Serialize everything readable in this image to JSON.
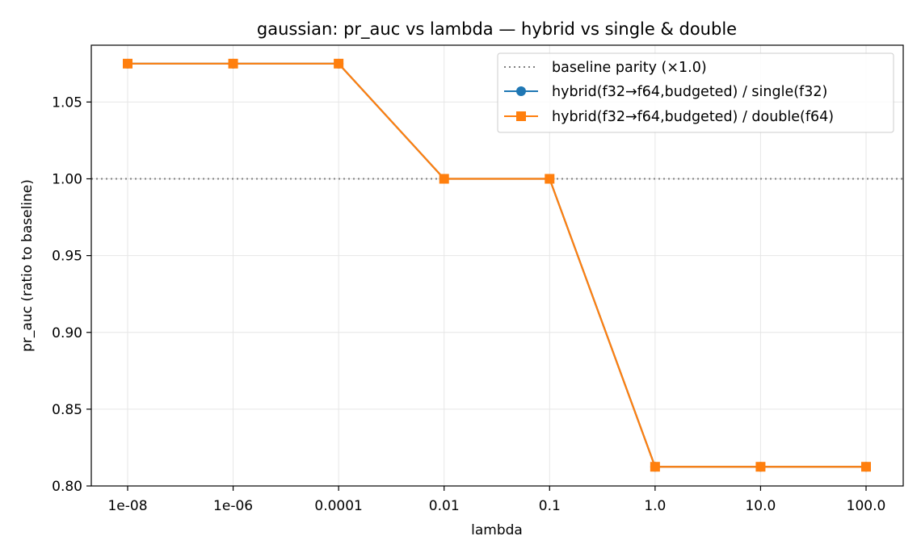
{
  "chart_data": {
    "type": "line",
    "title": "gaussian: pr_auc vs lambda — hybrid vs single & double",
    "xlabel": "lambda",
    "ylabel": "pr_auc (ratio to baseline)",
    "categories": [
      "1e-08",
      "1e-06",
      "0.0001",
      "0.01",
      "0.1",
      "1.0",
      "10.0",
      "100.0"
    ],
    "ylim": [
      0.8,
      1.087
    ],
    "yticks": [
      0.8,
      0.85,
      0.9,
      0.95,
      1.0,
      1.05
    ],
    "ytick_labels": [
      "0.80",
      "0.85",
      "0.90",
      "0.95",
      "1.00",
      "1.05"
    ],
    "grid": true,
    "legend_position": "top-right",
    "baseline": {
      "name": "baseline parity (×1.0)",
      "value": 1.0,
      "color": "#808080",
      "style": "dotted"
    },
    "series": [
      {
        "name": "hybrid(f32→f64,budgeted) / single(f32)",
        "color": "#1f77b4",
        "marker": "circle",
        "values": [
          1.075,
          1.075,
          1.075,
          1.0,
          1.0,
          0.8125,
          0.8125,
          0.8125
        ]
      },
      {
        "name": "hybrid(f32→f64,budgeted) / double(f64)",
        "color": "#ff7f0e",
        "marker": "square",
        "values": [
          1.075,
          1.075,
          1.075,
          1.0,
          1.0,
          0.8125,
          0.8125,
          0.8125
        ]
      }
    ]
  }
}
